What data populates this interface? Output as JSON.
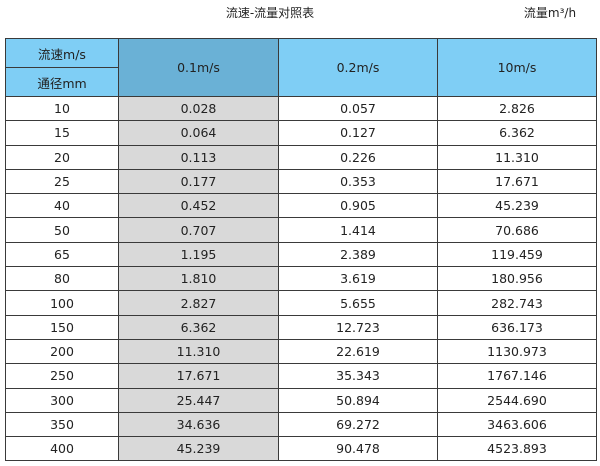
{
  "title": "流速-流量对照表",
  "unit_label": "流量m³/h",
  "colors": {
    "header": "#7fcef5",
    "header_selected": "#6ab1d6",
    "highlight_column": "#d9d9d9"
  },
  "header": {
    "row_label_top": "流速m/s",
    "row_label_bottom": "通径mm",
    "columns": [
      "0.1m/s",
      "0.2m/s",
      "10m/s"
    ]
  },
  "rows": [
    [
      "10",
      "0.028",
      "0.057",
      "2.826"
    ],
    [
      "15",
      "0.064",
      "0.127",
      "6.362"
    ],
    [
      "20",
      "0.113",
      "0.226",
      "11.310"
    ],
    [
      "25",
      "0.177",
      "0.353",
      "17.671"
    ],
    [
      "40",
      "0.452",
      "0.905",
      "45.239"
    ],
    [
      "50",
      "0.707",
      "1.414",
      "70.686"
    ],
    [
      "65",
      "1.195",
      "2.389",
      "119.459"
    ],
    [
      "80",
      "1.810",
      "3.619",
      "180.956"
    ],
    [
      "100",
      "2.827",
      "5.655",
      "282.743"
    ],
    [
      "150",
      "6.362",
      "12.723",
      "636.173"
    ],
    [
      "200",
      "11.310",
      "22.619",
      "1130.973"
    ],
    [
      "250",
      "17.671",
      "35.343",
      "1767.146"
    ],
    [
      "300",
      "25.447",
      "50.894",
      "2544.690"
    ],
    [
      "350",
      "34.636",
      "69.272",
      "3463.606"
    ],
    [
      "400",
      "45.239",
      "90.478",
      "4523.893"
    ]
  ]
}
